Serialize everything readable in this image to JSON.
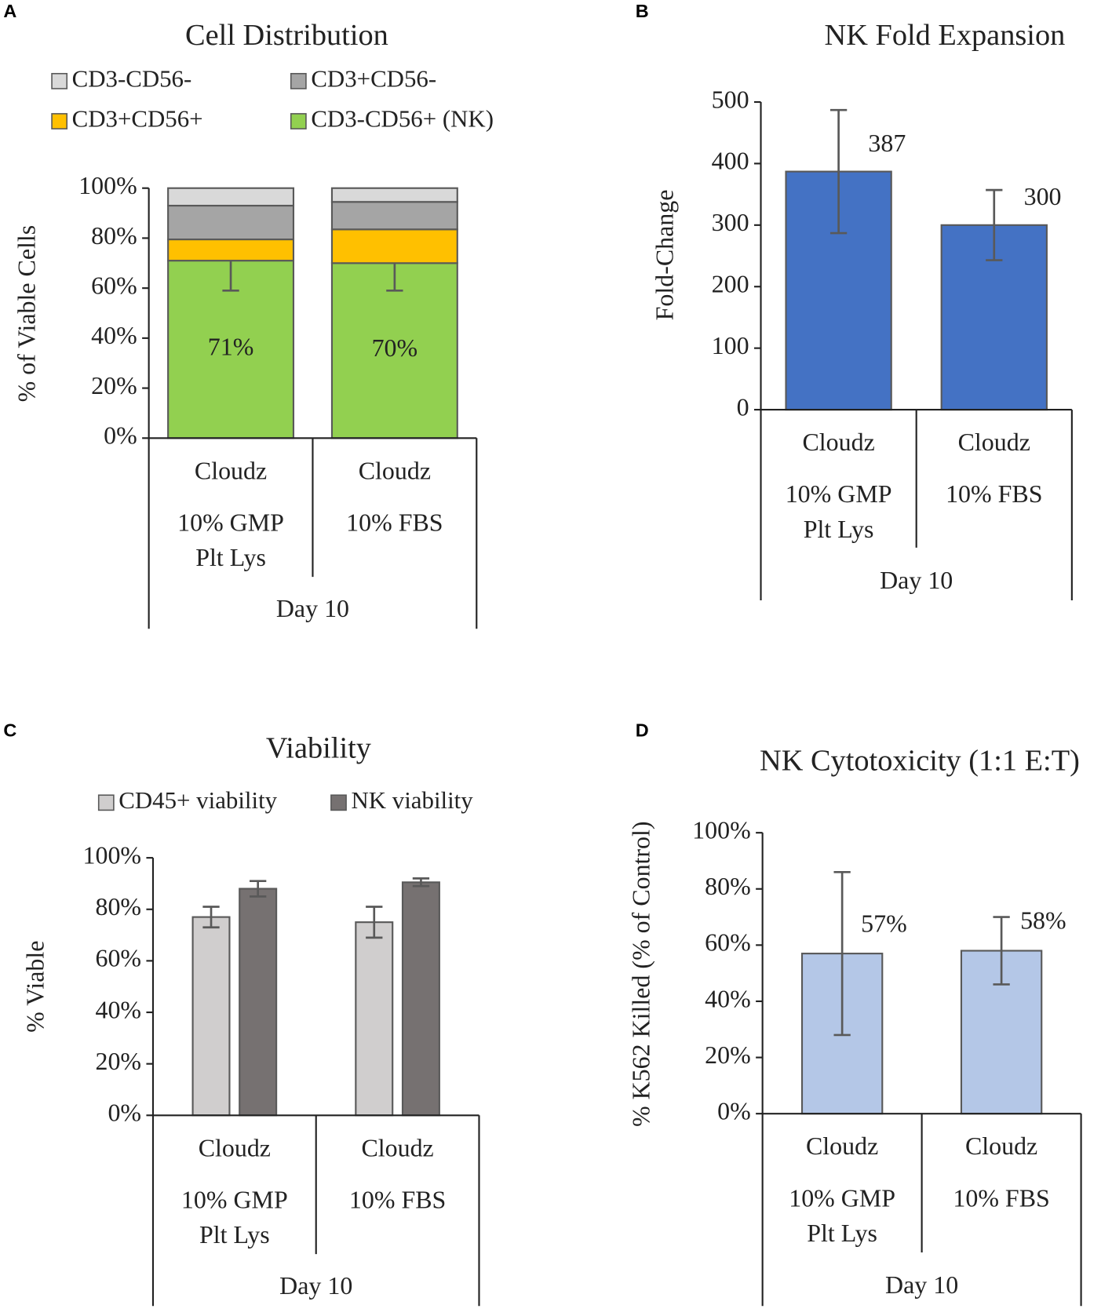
{
  "chart_data": [
    {
      "panel": "A",
      "type": "bar",
      "stacked": true,
      "title": "Cell Distribution",
      "ylabel": "% of Viable Cells",
      "categories": [
        [
          "Cloudz",
          "10% GMP",
          "Plt Lys"
        ],
        [
          "Cloudz",
          "10% FBS"
        ]
      ],
      "group_label": "Day 10",
      "series": [
        {
          "name": "CD3-CD56+ (NK)",
          "color": "#92d050",
          "values": [
            71,
            70
          ],
          "errors": [
            12,
            11
          ],
          "value_labels": [
            "71%",
            "70%"
          ]
        },
        {
          "name": "CD3+CD56+",
          "color": "#ffc000",
          "values": [
            8.5,
            13.5
          ]
        },
        {
          "name": "CD3+CD56-",
          "color": "#a5a5a5",
          "values": [
            13.5,
            11
          ]
        },
        {
          "name": "CD3-CD56-",
          "color": "#d9d9d9",
          "values": [
            7,
            5.5
          ]
        }
      ],
      "ylim": [
        0,
        100
      ],
      "yticks": [
        {
          "value": 0,
          "label": "0%"
        },
        {
          "value": 20,
          "label": "20%"
        },
        {
          "value": 40,
          "label": "40%"
        },
        {
          "value": 60,
          "label": "60%"
        },
        {
          "value": 80,
          "label": "80%"
        },
        {
          "value": 100,
          "label": "100%"
        }
      ]
    },
    {
      "panel": "B",
      "type": "bar",
      "title": "NK Fold Expansion",
      "ylabel": "Fold-Change",
      "categories": [
        [
          "Cloudz",
          "10% GMP",
          "Plt Lys"
        ],
        [
          "Cloudz",
          "10% FBS"
        ]
      ],
      "group_label": "Day 10",
      "values": [
        387,
        300
      ],
      "errors": [
        100,
        57
      ],
      "color": "#4472c4",
      "ylim": [
        0,
        500
      ],
      "yticks": [
        0,
        100,
        200,
        300,
        400,
        500
      ]
    },
    {
      "panel": "C",
      "type": "bar",
      "title": "Viability",
      "ylabel": "% Viable",
      "categories": [
        [
          "Cloudz",
          "10% GMP",
          "Plt Lys"
        ],
        [
          "Cloudz",
          "10% FBS"
        ]
      ],
      "group_label": "Day 10",
      "series": [
        {
          "name": "CD45+ viability",
          "color": "#d0cece",
          "values": [
            77,
            75
          ],
          "errors": [
            4,
            6
          ]
        },
        {
          "name": "NK viability",
          "color": "#767171",
          "values": [
            88,
            90.5
          ],
          "errors": [
            3,
            1.5
          ]
        }
      ],
      "ylim": [
        0,
        100
      ],
      "yticks": [
        {
          "value": 0,
          "label": "0%"
        },
        {
          "value": 20,
          "label": "20%"
        },
        {
          "value": 40,
          "label": "40%"
        },
        {
          "value": 60,
          "label": "60%"
        },
        {
          "value": 80,
          "label": "80%"
        },
        {
          "value": 100,
          "label": "100%"
        }
      ]
    },
    {
      "panel": "D",
      "type": "bar",
      "title": "NK Cytotoxicity (1:1 E:T)",
      "ylabel": "% K562 Killed (% of Control)",
      "categories": [
        [
          "Cloudz",
          "10% GMP",
          "Plt Lys"
        ],
        [
          "Cloudz",
          "10% FBS"
        ]
      ],
      "group_label": "Day 10",
      "values": [
        57,
        58
      ],
      "errors": [
        29,
        12
      ],
      "value_labels": [
        "57%",
        "58%"
      ],
      "color": "#b4c7e7",
      "ylim": [
        0,
        100
      ],
      "yticks": [
        {
          "value": 0,
          "label": "0%"
        },
        {
          "value": 20,
          "label": "20%"
        },
        {
          "value": 40,
          "label": "40%"
        },
        {
          "value": 60,
          "label": "60%"
        },
        {
          "value": 80,
          "label": "80%"
        },
        {
          "value": 100,
          "label": "100%"
        }
      ]
    }
  ]
}
